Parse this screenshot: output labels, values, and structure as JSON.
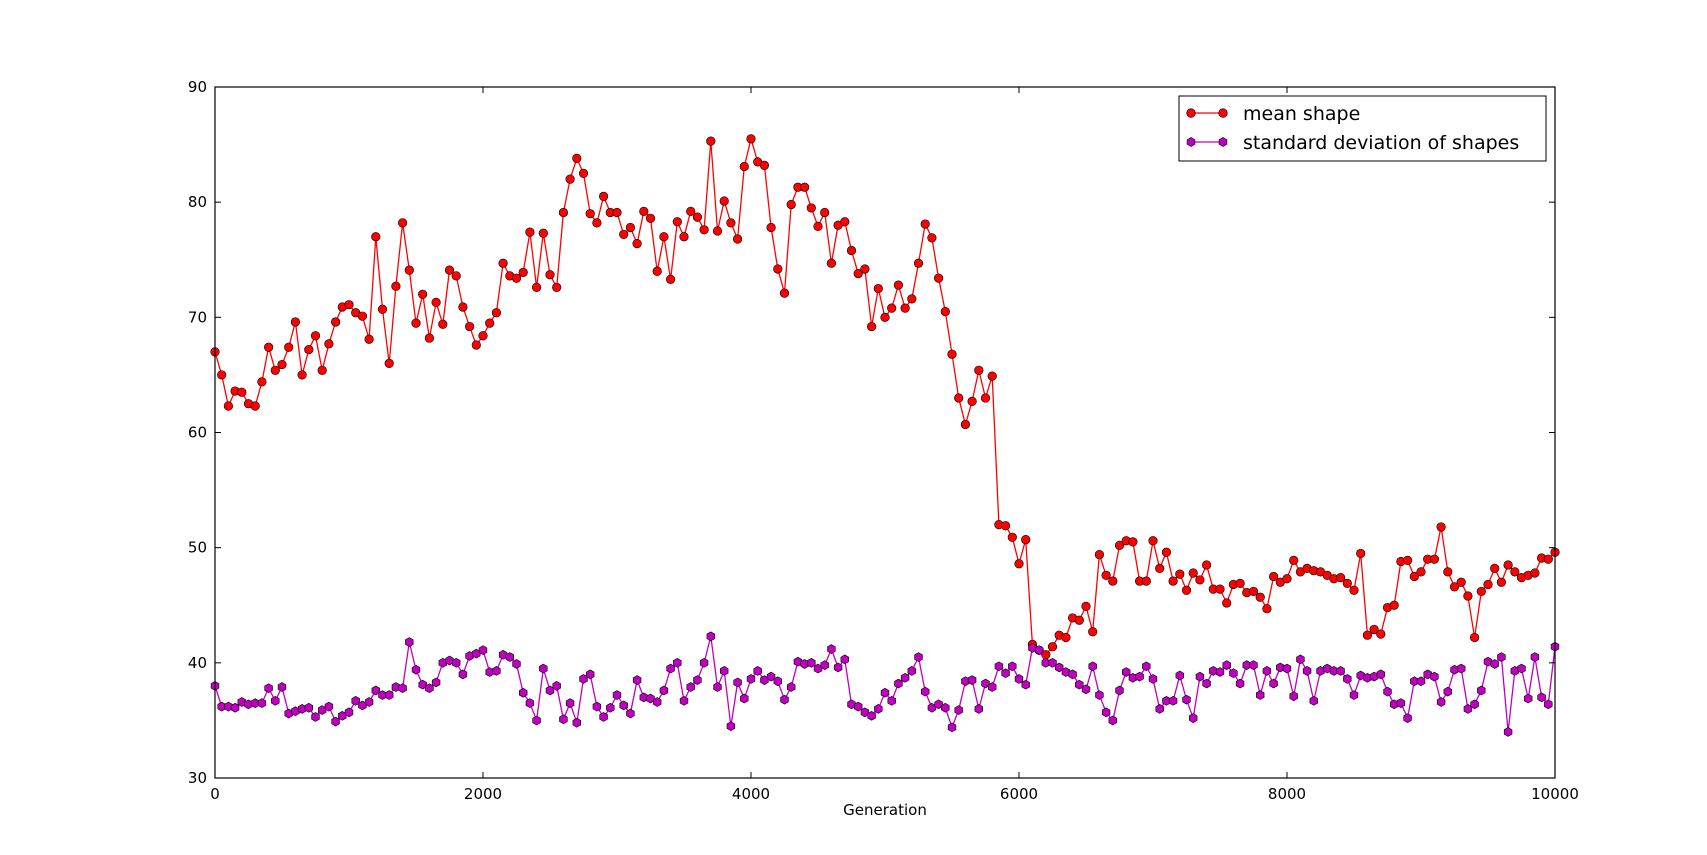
{
  "chart_data": {
    "type": "line",
    "title": "",
    "xlabel": "Generation",
    "ylabel": "",
    "xlim": [
      0,
      10000
    ],
    "ylim": [
      30,
      90
    ],
    "xticks": [
      "0",
      "2000",
      "4000",
      "6000",
      "8000",
      "10000"
    ],
    "yticks": [
      "30",
      "40",
      "50",
      "60",
      "70",
      "80",
      "90"
    ],
    "grid": false,
    "legend_position": "top-right",
    "x_step": 50,
    "series": [
      {
        "name": "mean shape",
        "color": "#ff0000",
        "marker": "circle",
        "values": [
          67.0,
          65.0,
          62.3,
          63.6,
          63.5,
          62.5,
          62.3,
          64.4,
          67.4,
          65.4,
          65.9,
          67.4,
          69.6,
          65.0,
          67.2,
          68.4,
          65.4,
          67.7,
          69.6,
          70.9,
          71.1,
          70.4,
          70.1,
          68.1,
          77.0,
          70.7,
          66.0,
          72.7,
          78.2,
          74.1,
          69.5,
          72.0,
          68.2,
          71.3,
          69.4,
          74.1,
          73.6,
          70.9,
          69.2,
          67.6,
          68.4,
          69.5,
          70.4,
          74.7,
          73.6,
          73.4,
          73.9,
          77.4,
          72.6,
          77.3,
          73.7,
          72.6,
          79.1,
          82.0,
          83.8,
          82.5,
          79.0,
          78.2,
          80.5,
          79.1,
          79.1,
          77.2,
          77.8,
          76.4,
          79.2,
          78.6,
          74.0,
          77.0,
          73.3,
          78.3,
          77.0,
          79.2,
          78.7,
          77.6,
          85.3,
          77.5,
          80.1,
          78.2,
          76.8,
          83.1,
          85.5,
          83.5,
          83.2,
          77.8,
          74.2,
          72.1,
          79.8,
          81.3,
          81.3,
          79.5,
          77.9,
          79.1,
          74.7,
          78.0,
          78.3,
          75.8,
          73.8,
          74.2,
          69.2,
          72.5,
          70.0,
          70.8,
          72.8,
          70.8,
          71.6,
          74.7,
          78.1,
          76.9,
          73.4,
          70.5,
          66.8,
          63.0,
          60.7,
          62.7,
          65.4,
          63.0,
          64.9,
          52.0,
          51.9,
          50.9,
          48.6,
          50.7,
          41.6,
          41.1,
          40.7,
          41.4,
          42.4,
          42.2,
          43.9,
          43.7,
          44.9,
          42.7,
          49.4,
          47.6,
          47.1,
          50.2,
          50.6,
          50.5,
          47.1,
          47.1,
          50.6,
          48.2,
          49.6,
          47.1,
          47.7,
          46.3,
          47.8,
          47.2,
          48.5,
          46.4,
          46.4,
          45.2,
          46.8,
          46.9,
          46.1,
          46.2,
          45.7,
          44.7,
          47.5,
          47.0,
          47.3,
          48.9,
          47.9,
          48.2,
          48.0,
          47.9,
          47.6,
          47.3,
          47.4,
          46.9,
          46.3,
          49.5,
          42.4,
          42.9,
          42.5,
          44.8,
          45.0,
          48.8,
          48.9,
          47.5,
          47.9,
          49.0,
          49.0,
          51.8,
          47.9,
          46.6,
          47.0,
          45.8,
          42.2,
          46.2,
          46.8,
          48.2,
          47.0,
          48.5,
          47.9,
          47.4,
          47.6,
          47.8,
          49.1,
          49.0,
          49.6
        ]
      },
      {
        "name": "standard deviation of shapes",
        "color": "#bf00bf",
        "marker": "hexagon",
        "values": [
          38.0,
          36.2,
          36.2,
          36.1,
          36.6,
          36.4,
          36.5,
          36.5,
          37.8,
          36.7,
          37.9,
          35.6,
          35.8,
          36.0,
          36.1,
          35.3,
          35.9,
          36.2,
          34.9,
          35.4,
          35.7,
          36.7,
          36.3,
          36.6,
          37.6,
          37.2,
          37.2,
          37.9,
          37.8,
          41.8,
          39.4,
          38.1,
          37.8,
          38.3,
          40.0,
          40.2,
          40.0,
          39.0,
          40.6,
          40.8,
          41.1,
          39.2,
          39.3,
          40.7,
          40.5,
          39.9,
          37.4,
          36.5,
          35.0,
          39.5,
          37.6,
          38.0,
          35.1,
          36.5,
          34.8,
          38.6,
          39.0,
          36.2,
          35.3,
          36.1,
          37.2,
          36.3,
          35.6,
          38.5,
          37.0,
          36.9,
          36.6,
          37.6,
          39.5,
          40.0,
          36.7,
          37.9,
          38.5,
          40.0,
          42.3,
          37.9,
          39.3,
          34.5,
          38.3,
          36.9,
          38.6,
          39.3,
          38.5,
          38.8,
          38.4,
          36.8,
          37.9,
          40.1,
          39.9,
          40.0,
          39.5,
          39.8,
          41.2,
          39.6,
          40.3,
          36.4,
          36.2,
          35.7,
          35.4,
          36.0,
          37.4,
          36.7,
          38.2,
          38.7,
          39.3,
          40.5,
          37.5,
          36.1,
          36.4,
          36.1,
          34.4,
          35.9,
          38.4,
          38.5,
          36.0,
          38.2,
          37.9,
          39.7,
          39.1,
          39.7,
          38.6,
          38.1,
          41.3,
          41.1,
          40.0,
          40.0,
          39.6,
          39.2,
          39.0,
          38.1,
          37.7,
          39.7,
          37.2,
          35.7,
          35.0,
          37.6,
          39.2,
          38.7,
          38.8,
          39.7,
          38.6,
          36.0,
          36.7,
          36.7,
          38.9,
          36.8,
          35.2,
          38.8,
          38.2,
          39.3,
          39.2,
          39.8,
          39.1,
          38.2,
          39.8,
          39.8,
          37.2,
          39.3,
          38.2,
          39.6,
          39.5,
          37.1,
          40.3,
          39.3,
          36.7,
          39.3,
          39.5,
          39.3,
          39.3,
          38.6,
          37.2,
          38.9,
          38.7,
          38.8,
          39.0,
          37.5,
          36.4,
          36.5,
          35.2,
          38.4,
          38.4,
          39.0,
          38.8,
          36.6,
          37.5,
          39.4,
          39.5,
          36.0,
          36.4,
          37.6,
          40.1,
          39.9,
          40.5,
          34.0,
          39.3,
          39.5,
          36.9,
          40.5,
          37.0,
          36.4,
          41.4
        ]
      }
    ]
  }
}
